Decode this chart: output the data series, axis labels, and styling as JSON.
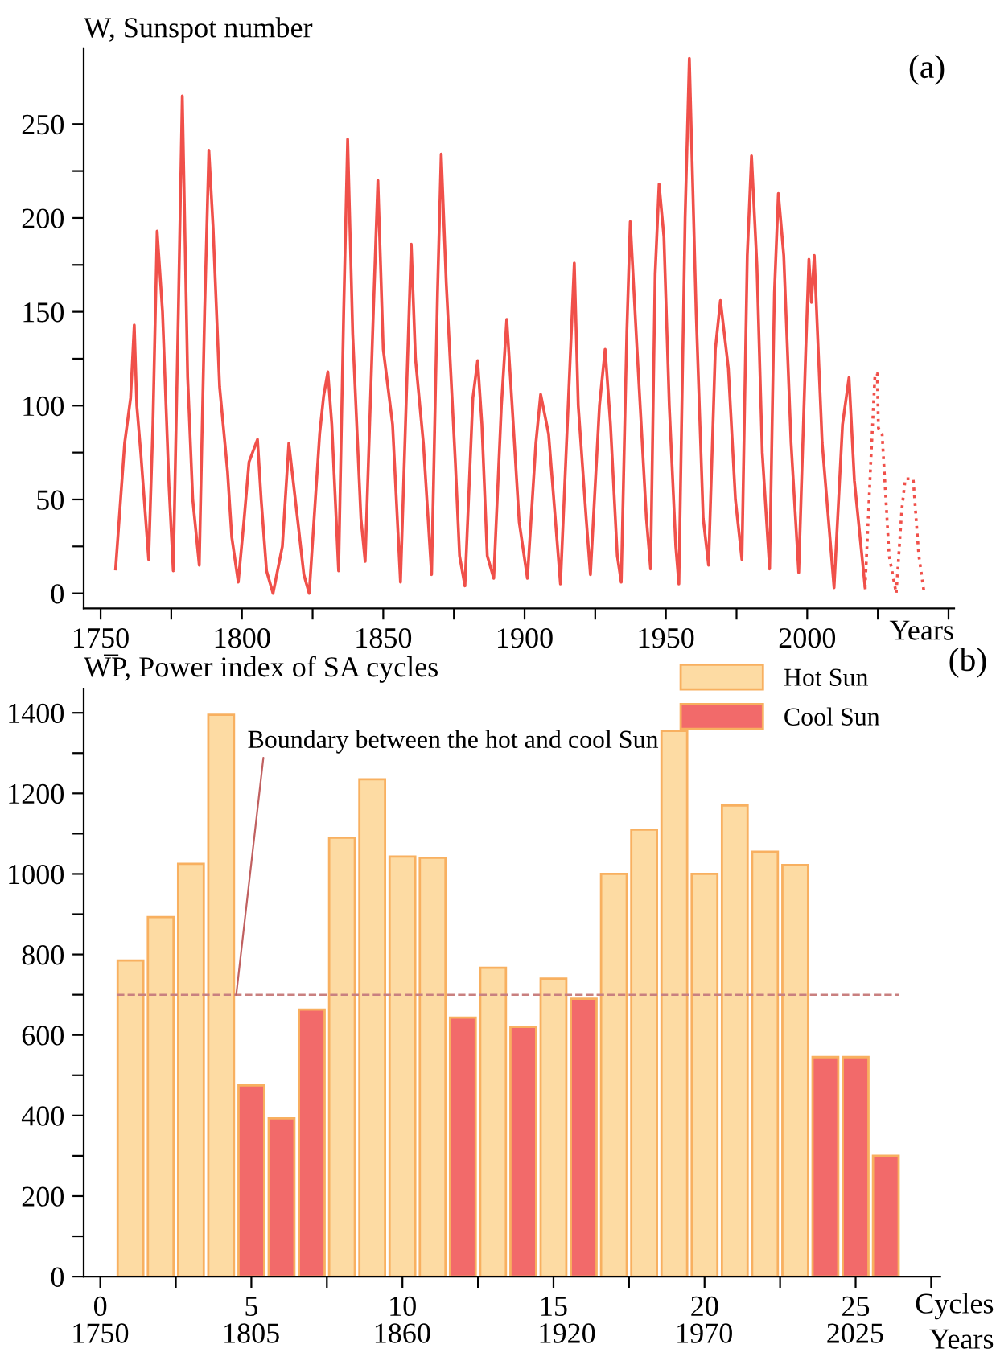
{
  "chart_data": [
    {
      "type": "line",
      "ylabel": "W, Sunspot number",
      "xlabel": "Years",
      "annotations": [
        "(a)"
      ],
      "xlim": [
        1744,
        2052
      ],
      "ylim": [
        -8,
        290
      ],
      "xticks": [
        1750,
        {
          "value": 1775,
          "label": null
        },
        1800,
        {
          "value": 1825,
          "label": null
        },
        1850,
        {
          "value": 1875,
          "label": null
        },
        1900,
        {
          "value": 1925,
          "label": null
        },
        1950,
        {
          "value": 1975,
          "label": null
        },
        2000,
        {
          "value": 2025,
          "label": null
        },
        {
          "value": 2050,
          "label": null
        }
      ],
      "yticks": [
        0,
        {
          "value": 25,
          "label": null
        },
        50,
        {
          "value": 75,
          "label": null
        },
        100,
        {
          "value": 125,
          "label": null
        },
        150,
        {
          "value": 175,
          "label": null
        },
        200,
        {
          "value": 225,
          "label": null
        },
        250
      ],
      "grid": false,
      "marker": "none",
      "series": [
        {
          "color": "#f0504a",
          "line_style": "solid",
          "x": [
            1755.3,
            1758.5,
            1760.6,
            1761.9,
            1762.8,
            1764.2,
            1767,
            1768.5,
            1770,
            1771.9,
            1774.2,
            1775.7,
            1777.5,
            1778.9,
            1780.8,
            1782.6,
            1784.9,
            1786.8,
            1788.3,
            1789.8,
            1792.1,
            1794.9,
            1796.4,
            1798.7,
            1800.8,
            1802.5,
            1805.5,
            1806.8,
            1808.7,
            1811,
            1814.3,
            1816.6,
            1819.8,
            1821.9,
            1823.8,
            1827.5,
            1828.9,
            1830.4,
            1831.8,
            1834.2,
            1836,
            1837.4,
            1839.2,
            1842.1,
            1843.6,
            1846.5,
            1848.1,
            1850,
            1853.3,
            1856.1,
            1858.5,
            1859.9,
            1861.4,
            1864.2,
            1867.1,
            1869.2,
            1870.5,
            1872.3,
            1875.5,
            1877,
            1878.9,
            1881.7,
            1883.4,
            1884.9,
            1886.8,
            1889.1,
            1891.8,
            1893.7,
            1895.6,
            1898.1,
            1901,
            1904,
            1905.7,
            1908.5,
            1912.7,
            1916,
            1917.6,
            1919,
            1921.8,
            1923.3,
            1926.5,
            1928.5,
            1930.4,
            1932.8,
            1934.2,
            1936.2,
            1937.4,
            1939.8,
            1943.1,
            1944.6,
            1946.2,
            1947.6,
            1949.3,
            1951.2,
            1953.5,
            1954.6,
            1956.8,
            1958.3,
            1960.7,
            1963.2,
            1965.1,
            1967.5,
            1969.3,
            1972.1,
            1974.6,
            1976.9,
            1978.8,
            1980.3,
            1982.2,
            1984.1,
            1986.7,
            1988.4,
            1989.8,
            1991.7,
            1994.3,
            1997,
            1999.5,
            2000.6,
            2001.5,
            2002.5,
            2005.3,
            2009.5,
            2012.5,
            2014.8,
            2016.7,
            2020.5
          ],
          "values": [
            13,
            80,
            104,
            143,
            100,
            75,
            18,
            90,
            193,
            150,
            57,
            12,
            150,
            265,
            115,
            50,
            15,
            150,
            236,
            195,
            110,
            65,
            30,
            6,
            40,
            70,
            82,
            50,
            12,
            0,
            25,
            80,
            38,
            10,
            0,
            85,
            105,
            118,
            90,
            12,
            150,
            242,
            138,
            40,
            17,
            150,
            220,
            130,
            90,
            6,
            120,
            186,
            125,
            80,
            10,
            160,
            234,
            165,
            70,
            20,
            4,
            104,
            124,
            90,
            20,
            8,
            100,
            146,
            100,
            38,
            8,
            80,
            106,
            85,
            5,
            120,
            176,
            100,
            40,
            10,
            100,
            130,
            90,
            20,
            6,
            140,
            198,
            130,
            40,
            13,
            170,
            218,
            190,
            100,
            25,
            5,
            200,
            285,
            150,
            40,
            15,
            130,
            156,
            120,
            50,
            18,
            180,
            233,
            175,
            75,
            13,
            160,
            213,
            180,
            80,
            11,
            130,
            178,
            155,
            180,
            80,
            3,
            90,
            115,
            60,
            3
          ]
        },
        {
          "color": "#f0504a",
          "line_style": "dotted",
          "x": [
            2020.5,
            2022.5,
            2024,
            2024.8,
            2025.2,
            2026.5,
            2029,
            2031.5,
            2033.5,
            2034.7,
            2037.5,
            2039.5,
            2041.4
          ],
          "values": [
            3,
            70,
            117,
            117,
            88,
            85,
            20,
            0,
            45,
            61,
            61,
            20,
            0
          ]
        }
      ]
    },
    {
      "type": "bar",
      "ylabel": "W̅P, Power index of SA cycles",
      "xlabel": "Cycles",
      "x2label": "Years",
      "legend": "top right",
      "annotations": [
        {
          "text": "Boundary between the hot and cool Sun",
          "x": 4.5,
          "y": 700
        },
        "(b)"
      ],
      "xlim": [
        -0.55,
        27.8
      ],
      "ylim": [
        0,
        1460
      ],
      "xticks": [
        0,
        {
          "value": 2.5,
          "label": null
        },
        5,
        {
          "value": 7.5,
          "label": null
        },
        10,
        {
          "value": 12.5,
          "label": null
        },
        15,
        {
          "value": 17.5,
          "label": null
        },
        20,
        {
          "value": 22.5,
          "label": null
        },
        25,
        {
          "value": 27.5,
          "label": null
        }
      ],
      "x2lim": [
        1744,
        2056
      ],
      "x2ticks": [
        1750,
        1805,
        1860,
        1920,
        1970,
        2025
      ],
      "yticks": [
        0,
        {
          "value": 100,
          "label": null
        },
        200,
        {
          "value": 300,
          "label": null
        },
        400,
        {
          "value": 500,
          "label": null
        },
        600,
        {
          "value": 700,
          "label": null
        },
        800,
        {
          "value": 900,
          "label": null
        },
        1000,
        {
          "value": 1100,
          "label": null
        },
        1200,
        {
          "value": 1300,
          "label": null
        },
        1400
      ],
      "grid": false,
      "ref_lines": [
        {
          "axis": "y",
          "value": 700,
          "label": null,
          "color": "#c98080",
          "line_style": "dashed"
        }
      ],
      "series": [
        {
          "name": "Hot Sun",
          "color": "#fddba3",
          "x": [
            1,
            2,
            3,
            4,
            8,
            9,
            10,
            11,
            13,
            15,
            17,
            18,
            19,
            20,
            21,
            22,
            23
          ],
          "values": [
            785,
            893,
            1025,
            1395,
            1090,
            1235,
            1043,
            1040,
            767,
            740,
            1000,
            1110,
            1355,
            1000,
            1170,
            1055,
            1022
          ]
        },
        {
          "name": "Cool Sun",
          "color": "#f26a6a",
          "x": [
            5,
            6,
            7,
            12,
            14,
            16,
            24,
            25,
            26
          ],
          "values": [
            475,
            393,
            663,
            643,
            620,
            690,
            545,
            545,
            300
          ]
        }
      ]
    }
  ]
}
